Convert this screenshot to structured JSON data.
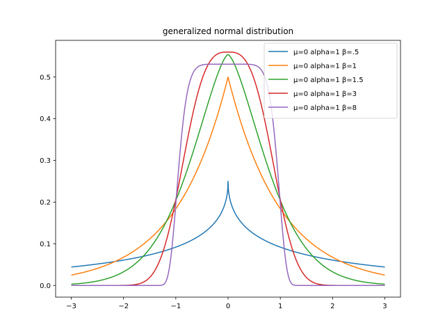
{
  "chart_data": {
    "type": "line",
    "title": "generalized normal distribution",
    "xlabel": "",
    "ylabel": "",
    "xlim": [
      -3.3,
      3.3
    ],
    "ylim": [
      -0.028,
      0.588
    ],
    "xticks": [
      -3,
      -2,
      -1,
      0,
      1,
      2,
      3
    ],
    "xtick_labels": [
      "−3",
      "−2",
      "−1",
      "0",
      "1",
      "2",
      "3"
    ],
    "yticks": [
      0.0,
      0.1,
      0.2,
      0.3,
      0.4,
      0.5
    ],
    "ytick_labels": [
      "0.0",
      "0.1",
      "0.2",
      "0.3",
      "0.4",
      "0.5"
    ],
    "grid": false,
    "legend_position": "top-right",
    "x_range": [
      -3,
      3
    ],
    "series": [
      {
        "name": "μ=0 alpha=1 β=.5",
        "mu": 0,
        "alpha": 1,
        "beta": 0.5,
        "color": "#1f77b4"
      },
      {
        "name": "μ=0 alpha=1 β=1",
        "mu": 0,
        "alpha": 1,
        "beta": 1,
        "color": "#ff7f0e"
      },
      {
        "name": "μ=0 alpha=1 β=1.5",
        "mu": 0,
        "alpha": 1,
        "beta": 1.5,
        "color": "#2ca02c"
      },
      {
        "name": "μ=0 alpha=1 β=3",
        "mu": 0,
        "alpha": 1,
        "beta": 3,
        "color": "#d62728"
      },
      {
        "name": "μ=0 alpha=1 β=8",
        "mu": 0,
        "alpha": 1,
        "beta": 8,
        "color": "#9467bd"
      }
    ]
  }
}
